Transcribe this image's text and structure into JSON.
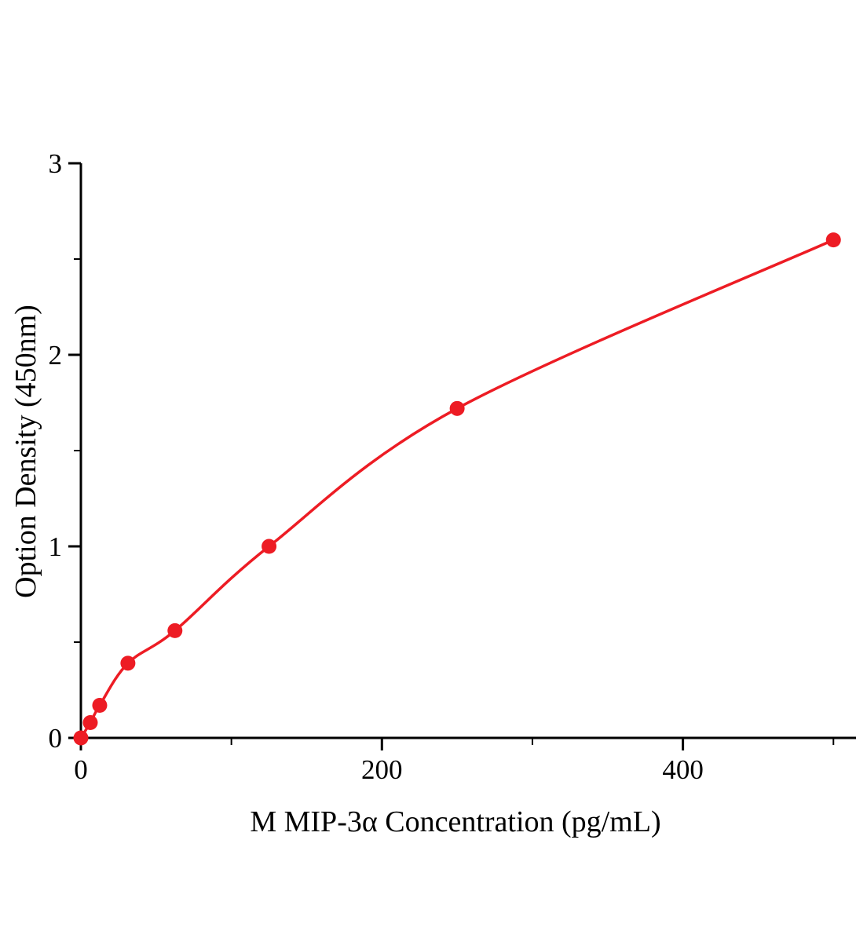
{
  "chart_data": {
    "type": "scatter",
    "title": "",
    "xlabel": "M MIP-3α Concentration (pg/mL)",
    "ylabel": "Option Density (450nm)",
    "x": [
      0,
      6.25,
      12.5,
      31.25,
      62.5,
      125,
      250,
      500
    ],
    "y": [
      0,
      0.08,
      0.17,
      0.39,
      0.56,
      1.0,
      1.72,
      2.6
    ],
    "xlim": [
      0,
      515
    ],
    "ylim": [
      0,
      3
    ],
    "x_major_ticks": [
      0,
      200,
      400
    ],
    "x_minor_ticks": [
      100,
      300,
      500
    ],
    "y_major_ticks": [
      0,
      1,
      2,
      3
    ],
    "y_minor_ticks": [
      0.5,
      1.5,
      2.5
    ],
    "grid": false,
    "legend": null,
    "line_color": "#ed1c24",
    "marker_color": "#ed1c24",
    "axis_color": "#000000",
    "background_color": "#ffffff"
  }
}
